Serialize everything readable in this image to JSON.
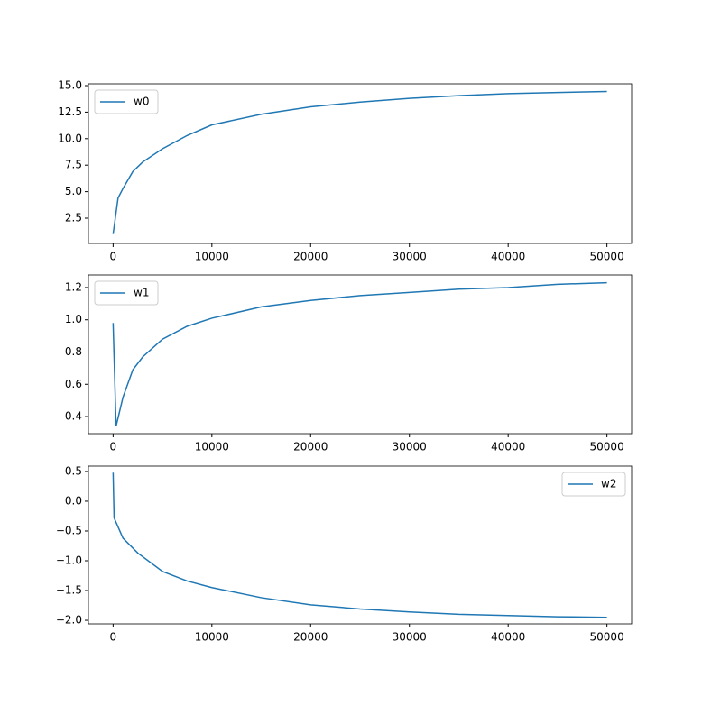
{
  "chart_data": [
    {
      "type": "line",
      "x": [
        0,
        500,
        1000,
        2000,
        3000,
        5000,
        7500,
        10000,
        15000,
        20000,
        25000,
        30000,
        35000,
        40000,
        45000,
        50000
      ],
      "series": [
        {
          "name": "w0",
          "color": "#1f77b4",
          "values": [
            1.0,
            4.4,
            5.3,
            6.9,
            7.8,
            9.05,
            10.3,
            11.3,
            12.3,
            13.0,
            13.45,
            13.8,
            14.05,
            14.25,
            14.35,
            14.45
          ]
        }
      ],
      "xlim": [
        -2500,
        52500
      ],
      "ylim": [
        0.12,
        15.17
      ],
      "xticks": [
        0,
        10000,
        20000,
        30000,
        40000,
        50000
      ],
      "yticks": [
        2.5,
        {
          "value": 5,
          "label": "5.0"
        },
        7.5,
        {
          "value": 10,
          "label": "10.0"
        },
        12.5,
        {
          "value": 15,
          "label": "15.0"
        }
      ],
      "legend": "upper left"
    },
    {
      "type": "line",
      "x": [
        0,
        300,
        1000,
        2000,
        3000,
        5000,
        7500,
        10000,
        15000,
        20000,
        25000,
        30000,
        35000,
        40000,
        45000,
        50000
      ],
      "series": [
        {
          "name": "w1",
          "color": "#1f77b4",
          "values": [
            0.98,
            0.34,
            0.52,
            0.69,
            0.77,
            0.88,
            0.96,
            1.01,
            1.08,
            1.12,
            1.15,
            1.17,
            1.19,
            1.2,
            1.22,
            1.23
          ]
        }
      ],
      "xlim": [
        -2500,
        52500
      ],
      "ylim": [
        0.294,
        1.278
      ],
      "xticks": [
        0,
        10000,
        20000,
        30000,
        40000,
        50000
      ],
      "yticks": [
        0.4,
        0.6,
        0.8,
        {
          "value": 1,
          "label": "1.0"
        },
        1.2
      ],
      "legend": "upper left"
    },
    {
      "type": "line",
      "x": [
        0,
        100,
        1000,
        2500,
        5000,
        7500,
        10000,
        15000,
        20000,
        25000,
        30000,
        35000,
        40000,
        45000,
        50000
      ],
      "series": [
        {
          "name": "w2",
          "color": "#1f77b4",
          "values": [
            0.48,
            -0.28,
            -0.62,
            -0.87,
            -1.18,
            -1.34,
            -1.45,
            -1.62,
            -1.74,
            -1.81,
            -1.86,
            -1.9,
            -1.92,
            -1.94,
            -1.95
          ]
        }
      ],
      "xlim": [
        -2500,
        52500
      ],
      "ylim": [
        -2.06,
        0.59
      ],
      "xticks": [
        0,
        10000,
        20000,
        30000,
        40000,
        50000
      ],
      "yticks": [
        {
          "value": -2,
          "label": "−2.0"
        },
        {
          "value": -1.5,
          "label": "−1.5"
        },
        {
          "value": -1,
          "label": "−1.0"
        },
        {
          "value": -0.5,
          "label": "−0.5"
        },
        {
          "value": 0,
          "label": "0.0"
        },
        0.5
      ],
      "legend": "upper right"
    }
  ]
}
